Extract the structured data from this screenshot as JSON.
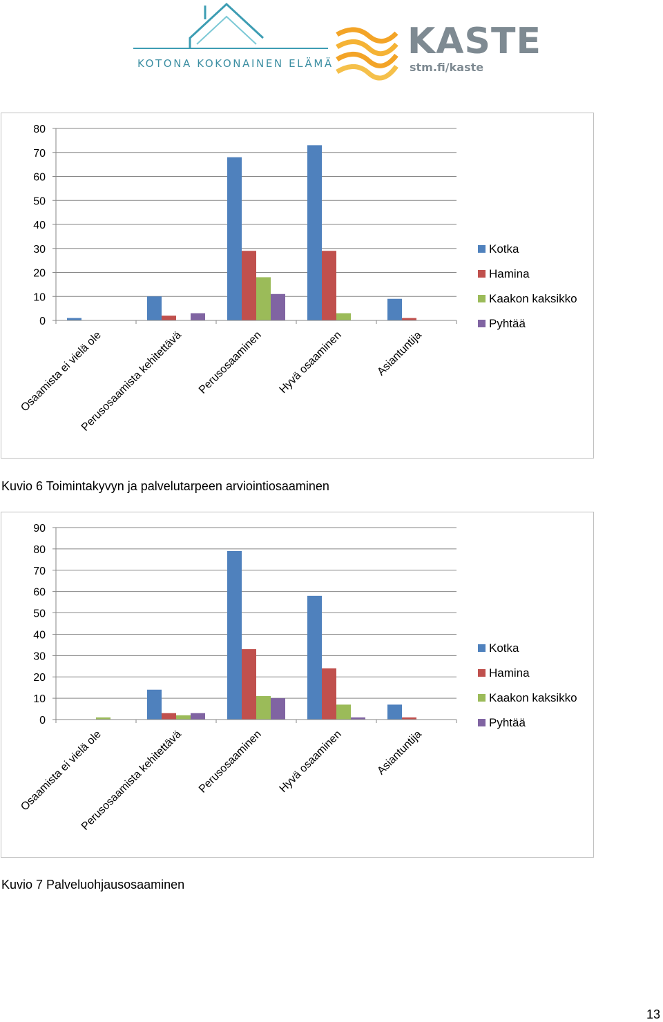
{
  "header": {
    "logo_left_text": "KOTONA KOKONAINEN ELÄMÄ",
    "logo_right_word": "KASTE",
    "logo_right_url": "stm.fi/kaste"
  },
  "colors": {
    "series": [
      "#4f81bd",
      "#c0504d",
      "#9bbb59",
      "#8064a2"
    ],
    "axis": "#868686",
    "grid": "#868686",
    "logo_teal": "#3d9db3",
    "logo_gray": "#7e8a92",
    "logo_orange": "#f3a427"
  },
  "chart_data": [
    {
      "type": "bar",
      "title": "",
      "categories": [
        "Osaamista ei vielä ole",
        "Perusosaamista kehitettävä",
        "Perusosaaminen",
        "Hyvä osaaminen",
        "Asiantuntija"
      ],
      "series": [
        {
          "name": "Kotka",
          "values": [
            1,
            10,
            68,
            73,
            9
          ]
        },
        {
          "name": "Hamina",
          "values": [
            0,
            2,
            29,
            29,
            1
          ]
        },
        {
          "name": "Kaakon kaksikko",
          "values": [
            0,
            0,
            18,
            3,
            0
          ]
        },
        {
          "name": "Pyhtää",
          "values": [
            0,
            3,
            11,
            0,
            0
          ]
        }
      ],
      "yticks": [
        "0",
        "10",
        "20",
        "30",
        "40",
        "50",
        "60",
        "70",
        "80"
      ],
      "ylim": [
        0,
        80
      ],
      "grid": true,
      "legend_position": "right"
    },
    {
      "type": "bar",
      "title": "",
      "categories": [
        "Osaamista ei vielä ole",
        "Perusosaamista kehitettävä",
        "Perusosaaminen",
        "Hyvä osaaminen",
        "Asiantuntija"
      ],
      "series": [
        {
          "name": "Kotka",
          "values": [
            0,
            14,
            79,
            58,
            7
          ]
        },
        {
          "name": "Hamina",
          "values": [
            0,
            3,
            33,
            24,
            1
          ]
        },
        {
          "name": "Kaakon kaksikko",
          "values": [
            1,
            2,
            11,
            7,
            0
          ]
        },
        {
          "name": "Pyhtää",
          "values": [
            0,
            3,
            10,
            1,
            0
          ]
        }
      ],
      "yticks": [
        "0",
        "10",
        "20",
        "30",
        "40",
        "50",
        "60",
        "70",
        "80",
        "90"
      ],
      "ylim": [
        0,
        90
      ],
      "grid": true,
      "legend_position": "right"
    }
  ],
  "captions": {
    "figure6": "Kuvio 6 Toimintakyvyn ja palvelutarpeen arviointiosaaminen",
    "figure7": "Kuvio 7 Palveluohjausosaaminen"
  },
  "page_number": "13"
}
